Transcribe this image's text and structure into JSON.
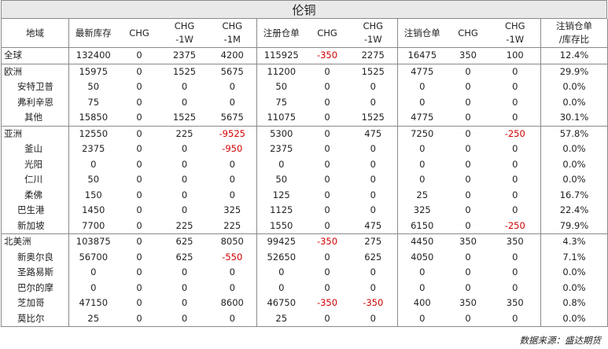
{
  "title": "伦铜",
  "headers": [
    {
      "l1": "地域",
      "l2": ""
    },
    {
      "l1": "最新库存",
      "l2": ""
    },
    {
      "l1": "CHG",
      "l2": ""
    },
    {
      "l1": "CHG",
      "l2": "-1W"
    },
    {
      "l1": "CHG",
      "l2": "-1M"
    },
    {
      "l1": "注册仓单",
      "l2": ""
    },
    {
      "l1": "CHG",
      "l2": ""
    },
    {
      "l1": "CHG",
      "l2": "-1W"
    },
    {
      "l1": "注销仓单",
      "l2": ""
    },
    {
      "l1": "CHG",
      "l2": ""
    },
    {
      "l1": "CHG",
      "l2": "-1W"
    },
    {
      "l1": "注销仓单",
      "l2": "/库存比"
    }
  ],
  "rows": [
    {
      "name": "全球",
      "level": 0,
      "group_top": true,
      "values": [
        "132400",
        "0",
        "2375",
        "4200",
        "115925",
        "-350",
        "2275",
        "16475",
        "350",
        "100",
        "12.4%"
      ]
    },
    {
      "name": "欧洲",
      "level": 0,
      "group_top": true,
      "values": [
        "15975",
        "0",
        "1525",
        "5675",
        "11200",
        "0",
        "1525",
        "4775",
        "0",
        "0",
        "29.9%"
      ]
    },
    {
      "name": "安特卫普",
      "level": 1,
      "values": [
        "50",
        "0",
        "0",
        "0",
        "50",
        "0",
        "0",
        "0",
        "0",
        "0",
        "0.0%"
      ]
    },
    {
      "name": "弗利辛恩",
      "level": 1,
      "values": [
        "75",
        "0",
        "0",
        "0",
        "75",
        "0",
        "0",
        "0",
        "0",
        "0",
        "0.0%"
      ]
    },
    {
      "name": "其他",
      "level": 2,
      "values": [
        "15850",
        "0",
        "1525",
        "5675",
        "11075",
        "0",
        "1525",
        "4775",
        "0",
        "0",
        "30.1%"
      ]
    },
    {
      "name": "亚洲",
      "level": 0,
      "group_top": true,
      "values": [
        "12550",
        "0",
        "225",
        "-9525",
        "5300",
        "0",
        "475",
        "7250",
        "0",
        "-250",
        "57.8%"
      ]
    },
    {
      "name": "釜山",
      "level": 2,
      "values": [
        "2375",
        "0",
        "0",
        "-950",
        "2375",
        "0",
        "0",
        "0",
        "0",
        "0",
        "0.0%"
      ]
    },
    {
      "name": "光阳",
      "level": 2,
      "values": [
        "0",
        "0",
        "0",
        "0",
        "0",
        "0",
        "0",
        "0",
        "0",
        "0",
        "0.0%"
      ]
    },
    {
      "name": "仁川",
      "level": 2,
      "values": [
        "50",
        "0",
        "0",
        "0",
        "50",
        "0",
        "0",
        "0",
        "0",
        "0",
        "0.0%"
      ]
    },
    {
      "name": "柔佛",
      "level": 2,
      "values": [
        "150",
        "0",
        "0",
        "0",
        "125",
        "0",
        "0",
        "25",
        "0",
        "0",
        "16.7%"
      ]
    },
    {
      "name": "巴生港",
      "level": 1,
      "values": [
        "1450",
        "0",
        "0",
        "325",
        "1125",
        "0",
        "0",
        "325",
        "0",
        "0",
        "22.4%"
      ]
    },
    {
      "name": "新加坡",
      "level": 1,
      "values": [
        "7700",
        "0",
        "225",
        "225",
        "1550",
        "0",
        "475",
        "6150",
        "0",
        "-250",
        "79.9%"
      ]
    },
    {
      "name": "北美洲",
      "level": 0,
      "group_top": true,
      "values": [
        "103875",
        "0",
        "625",
        "8050",
        "99425",
        "-350",
        "275",
        "4450",
        "350",
        "350",
        "4.3%"
      ]
    },
    {
      "name": "新奥尔良",
      "level": 1,
      "values": [
        "56700",
        "0",
        "625",
        "-550",
        "52650",
        "0",
        "625",
        "4050",
        "0",
        "0",
        "7.1%"
      ]
    },
    {
      "name": "圣路易斯",
      "level": 1,
      "values": [
        "0",
        "0",
        "0",
        "0",
        "0",
        "0",
        "0",
        "0",
        "0",
        "0",
        "0.0%"
      ]
    },
    {
      "name": "巴尔的摩",
      "level": 1,
      "values": [
        "0",
        "0",
        "0",
        "0",
        "0",
        "0",
        "0",
        "0",
        "0",
        "0",
        "0.0%"
      ]
    },
    {
      "name": "芝加哥",
      "level": 1,
      "values": [
        "47150",
        "0",
        "0",
        "8600",
        "46750",
        "-350",
        "-350",
        "400",
        "350",
        "350",
        "0.8%"
      ]
    },
    {
      "name": "莫比尔",
      "level": 1,
      "values": [
        "25",
        "0",
        "0",
        "0",
        "25",
        "0",
        "0",
        "0",
        "0",
        "0",
        "0.0%"
      ]
    }
  ],
  "source": "数据来源：盛达期货",
  "colors": {
    "negative": "#d00000",
    "header_bg": "#e9e9e9",
    "grid": "#8a8a8a"
  }
}
